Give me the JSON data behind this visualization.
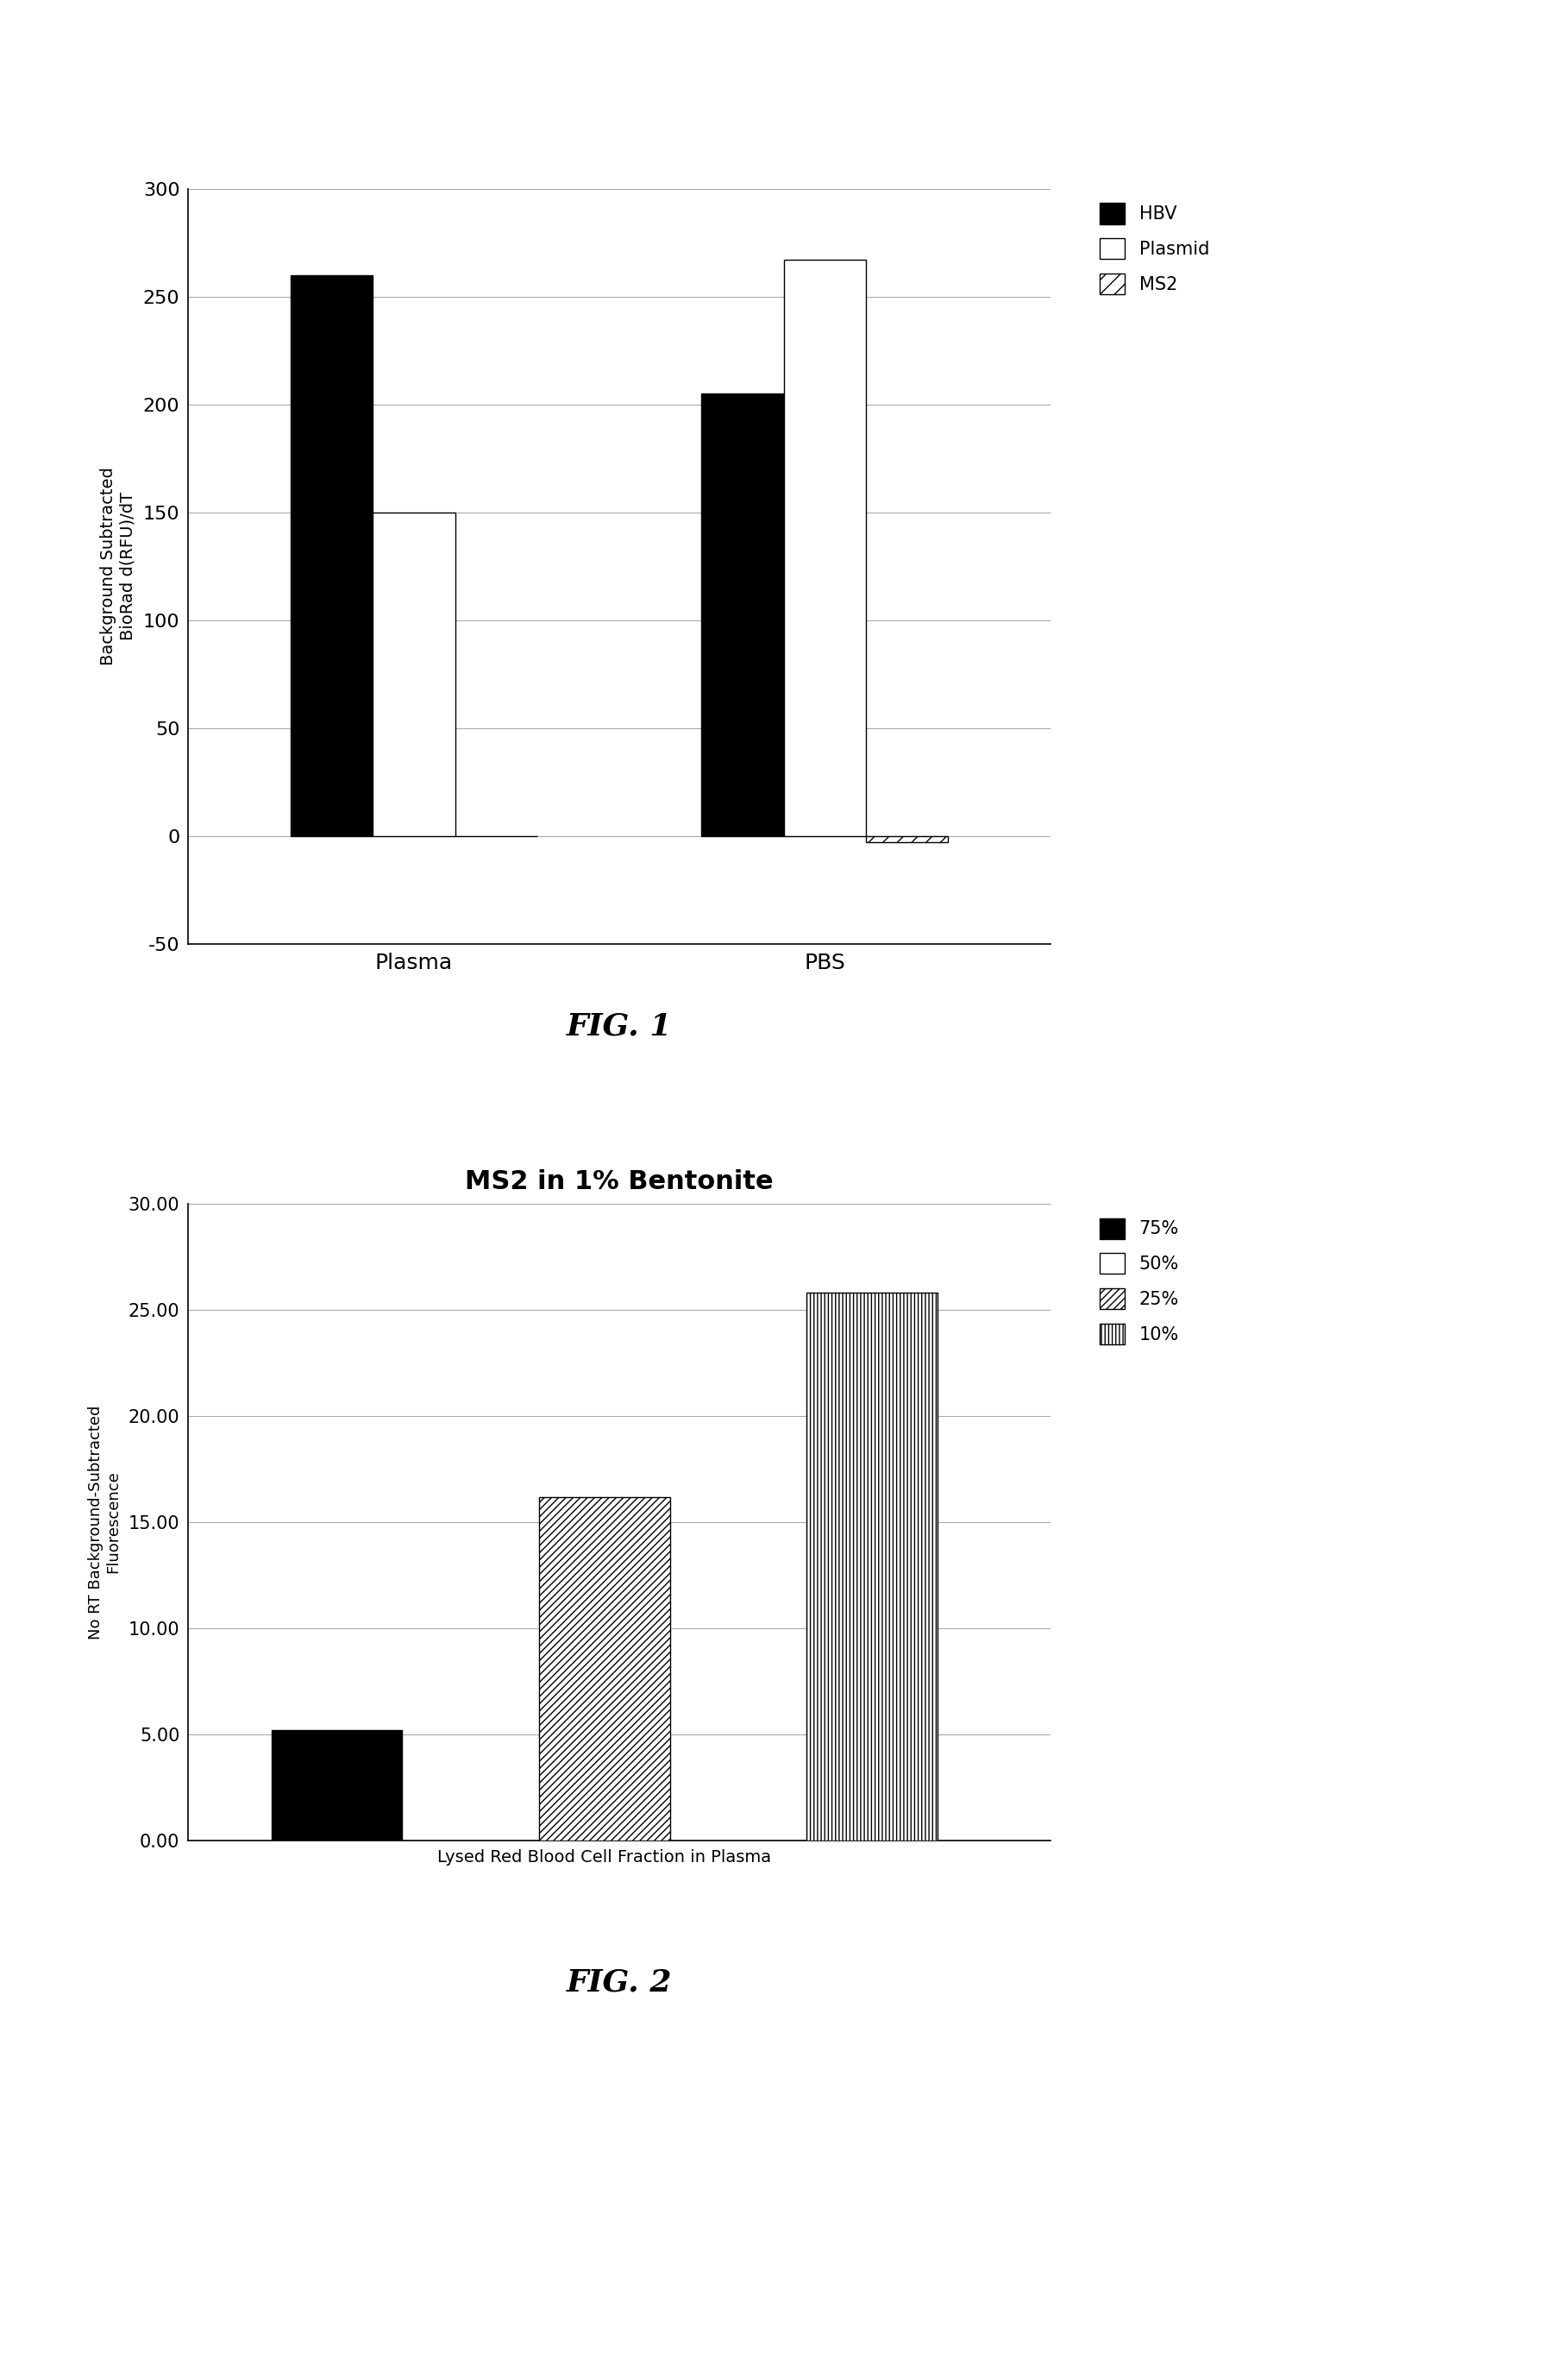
{
  "fig1": {
    "ylabel_line1": "Background Subtracted",
    "ylabel_line2": "BioRad d(RFU)/dT",
    "categories": [
      "Plasma",
      "PBS"
    ],
    "series": {
      "HBV": [
        260,
        205
      ],
      "Plasmid": [
        150,
        267
      ],
      "MS2": [
        0,
        -3
      ]
    },
    "ylim": [
      -50,
      300
    ],
    "yticks": [
      -50,
      0,
      50,
      100,
      150,
      200,
      250,
      300
    ],
    "legend_labels": [
      "HBV",
      "Plasmid",
      "MS2"
    ],
    "fig_label": "FIG. 1"
  },
  "fig2": {
    "title": "MS2 in 1% Bentonite",
    "ylabel_line1": "No RT Background-Subtracted",
    "ylabel_line2": "Fluorescence",
    "xlabel": "Lysed Red Blood Cell Fraction in Plasma",
    "bar_labels": [
      "75%",
      "25%",
      "10%"
    ],
    "values": [
      5.2,
      16.2,
      25.8
    ],
    "ylim": [
      0,
      30
    ],
    "yticks": [
      0,
      5,
      10,
      15,
      20,
      25,
      30
    ],
    "ytick_labels": [
      "0.00",
      "5.00",
      "10.00",
      "15.00",
      "20.00",
      "25.00",
      "30.00"
    ],
    "legend_labels": [
      "75%",
      "50%",
      "25%",
      "10%"
    ],
    "fig_label": "FIG. 2"
  },
  "background_color": "#ffffff",
  "font_color": "#000000"
}
